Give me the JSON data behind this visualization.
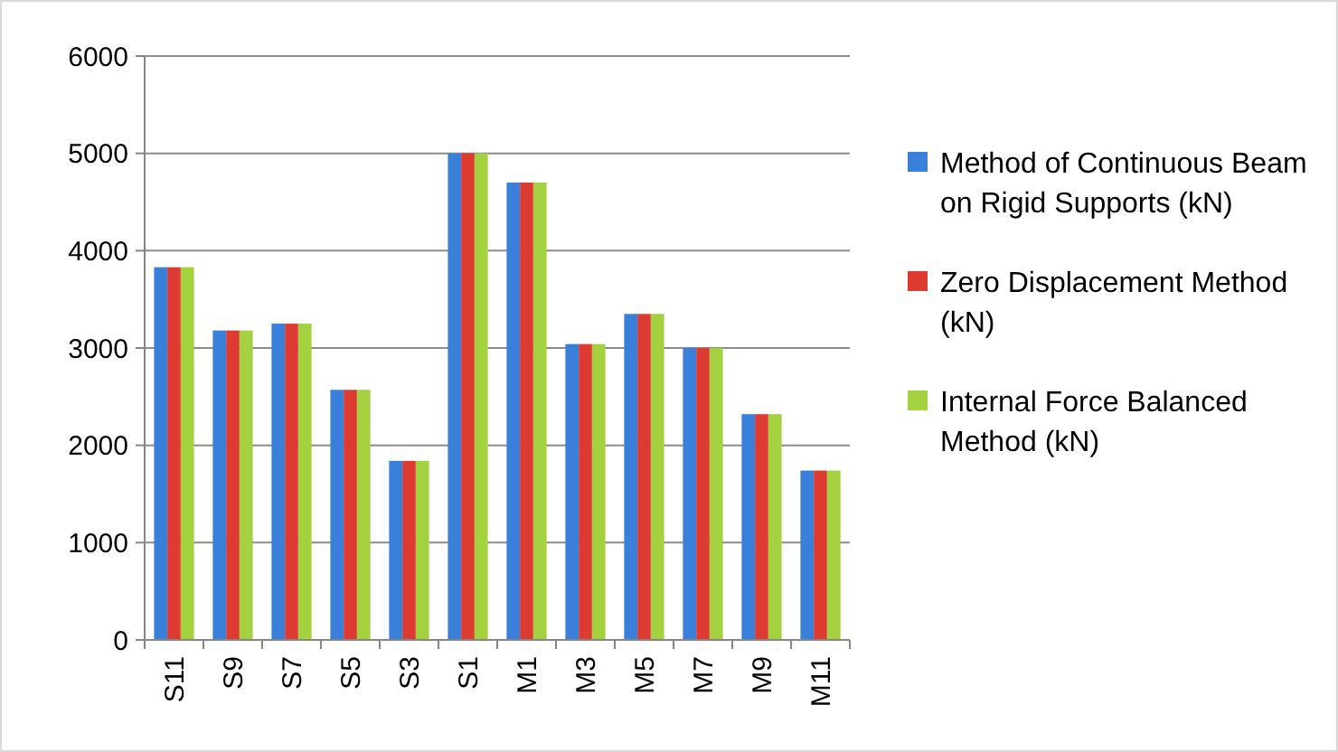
{
  "chart_data": {
    "type": "bar",
    "categories": [
      "S11",
      "S9",
      "S7",
      "S5",
      "S3",
      "S1",
      "M1",
      "M3",
      "M5",
      "M7",
      "M9",
      "M11"
    ],
    "series": [
      {
        "name": "Method of Continuous Beam on Rigid Supports (kN)",
        "color": "#3a7fd9",
        "values": [
          3830,
          3180,
          3250,
          2570,
          1840,
          5000,
          4700,
          3040,
          3350,
          3000,
          2320,
          1740
        ]
      },
      {
        "name": "Zero Displacement Method (kN)",
        "color": "#dd3b31",
        "values": [
          3830,
          3180,
          3250,
          2570,
          1840,
          5000,
          4700,
          3040,
          3350,
          3000,
          2320,
          1740
        ]
      },
      {
        "name": "Internal Force Balanced Method (kN)",
        "color": "#a3d13f",
        "values": [
          3830,
          3180,
          3250,
          2570,
          1840,
          5000,
          4700,
          3040,
          3350,
          3000,
          2320,
          1740
        ]
      }
    ],
    "ylim": [
      0,
      6000
    ],
    "yticks": [
      0,
      1000,
      2000,
      3000,
      4000,
      5000,
      6000
    ],
    "grid": "y",
    "legend": "right"
  }
}
